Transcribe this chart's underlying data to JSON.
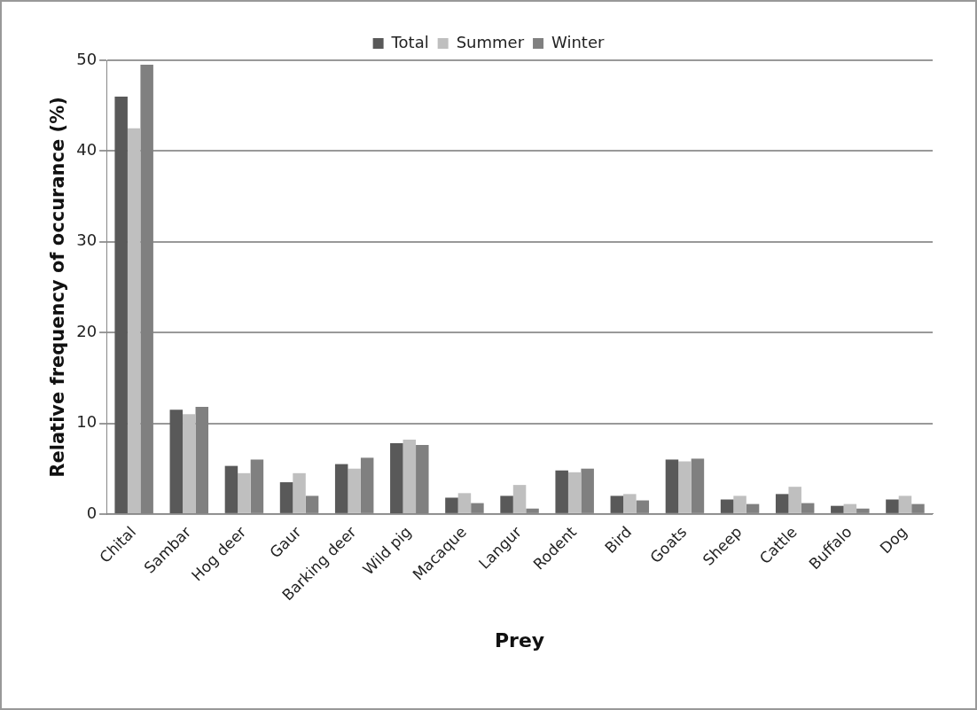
{
  "chart_data": {
    "type": "bar",
    "xlabel": "Prey",
    "ylabel": "Relative frequency of occurance (%)",
    "categories": [
      "Chital",
      "Sambar",
      "Hog deer",
      "Gaur",
      "Barking deer",
      "Wild pig",
      "Macaque",
      "Langur",
      "Rodent",
      "Bird",
      "Goats",
      "Sheep",
      "Cattle",
      "Buffalo",
      "Dog"
    ],
    "series": [
      {
        "name": "Total",
        "color": "#595959",
        "values": [
          46,
          11.5,
          5.3,
          3.5,
          5.5,
          7.8,
          1.8,
          2,
          4.8,
          2,
          6,
          1.6,
          2.2,
          0.9,
          1.6
        ]
      },
      {
        "name": "Summer",
        "color": "#bfbfbf",
        "values": [
          42.5,
          11,
          4.5,
          4.5,
          5,
          8.2,
          2.3,
          3.2,
          4.6,
          2.2,
          5.8,
          2,
          3,
          1.1,
          2
        ]
      },
      {
        "name": "Winter",
        "color": "#808080",
        "values": [
          49.5,
          11.8,
          6,
          2,
          6.2,
          7.6,
          1.2,
          0.6,
          5,
          1.5,
          6.1,
          1.1,
          1.2,
          0.6,
          1.1
        ]
      }
    ],
    "ylim": [
      0,
      50
    ],
    "yticks": [
      0,
      10,
      20,
      30,
      40,
      50
    ],
    "grid": "y",
    "legend": "top"
  }
}
